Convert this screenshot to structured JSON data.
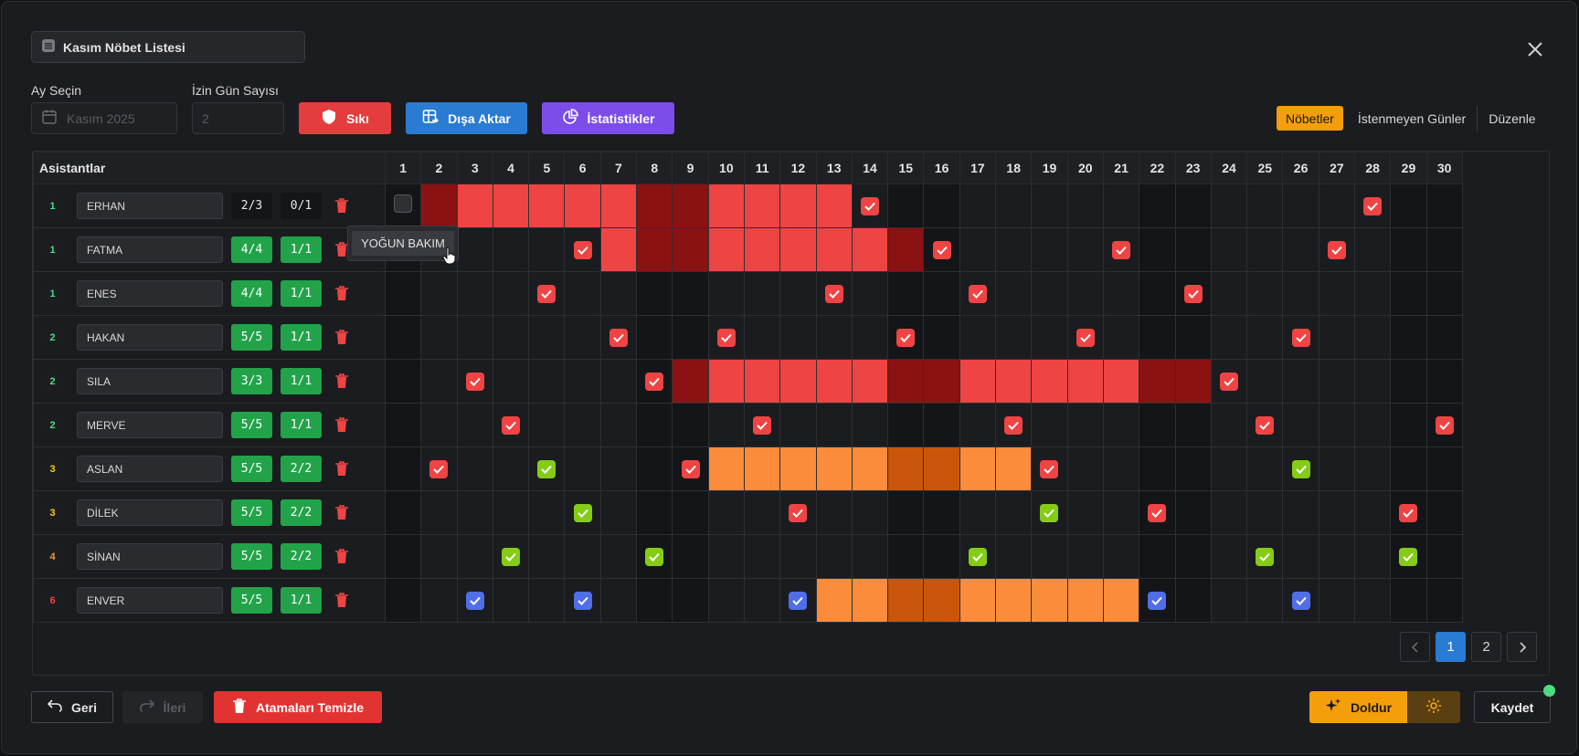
{
  "window": {
    "title": "Kasım Nöbet Listesi"
  },
  "controls": {
    "month_label": "Ay Seçin",
    "month_value": "Kasım 2025",
    "leave_label": "İzin Gün Sayısı",
    "leave_value": "2",
    "strict_button": "Sıkı",
    "export_button": "Dışa Aktar",
    "stats_button": "İstatistikler"
  },
  "tabs": {
    "shifts": "Nöbetler",
    "unwanted": "İstenmeyen Günler",
    "edit": "Düzenle"
  },
  "grid": {
    "header_name": "Asistantlar",
    "days": [
      "1",
      "2",
      "3",
      "4",
      "5",
      "6",
      "7",
      "8",
      "9",
      "10",
      "11",
      "12",
      "13",
      "14",
      "15",
      "16",
      "17",
      "18",
      "19",
      "20",
      "21",
      "22",
      "23",
      "24",
      "25",
      "26",
      "27",
      "28",
      "29",
      "30"
    ],
    "weekend_days": [
      1,
      8,
      9,
      15,
      16,
      22,
      23,
      29,
      30
    ],
    "rows": [
      {
        "level": "1",
        "name": "ERHAN",
        "a": "2/3",
        "b": "0/1",
        "a_style": "d",
        "b_style": "d"
      },
      {
        "level": "1",
        "name": "FATMA",
        "a": "4/4",
        "b": "1/1",
        "a_style": "g",
        "b_style": "g"
      },
      {
        "level": "1",
        "name": "ENES",
        "a": "4/4",
        "b": "1/1",
        "a_style": "g",
        "b_style": "g"
      },
      {
        "level": "2",
        "name": "HAKAN",
        "a": "5/5",
        "b": "1/1",
        "a_style": "g",
        "b_style": "g"
      },
      {
        "level": "2",
        "name": "SILA",
        "a": "3/3",
        "b": "1/1",
        "a_style": "g",
        "b_style": "g"
      },
      {
        "level": "2",
        "name": "MERVE",
        "a": "5/5",
        "b": "1/1",
        "a_style": "g",
        "b_style": "g"
      },
      {
        "level": "3",
        "name": "ASLAN",
        "a": "5/5",
        "b": "2/2",
        "a_style": "g",
        "b_style": "g"
      },
      {
        "level": "3",
        "name": "DİLEK",
        "a": "5/5",
        "b": "2/2",
        "a_style": "g",
        "b_style": "g"
      },
      {
        "level": "4",
        "name": "SİNAN",
        "a": "5/5",
        "b": "2/2",
        "a_style": "g",
        "b_style": "g"
      },
      {
        "level": "6",
        "name": "ENVER",
        "a": "5/5",
        "b": "1/1",
        "a_style": "g",
        "b_style": "g"
      }
    ],
    "level_colors": {
      "1": "#4ade80",
      "2": "#4ade80",
      "3": "#facc15",
      "4": "#fb923c",
      "6": "#ef4444"
    }
  },
  "tooltip": "YOĞUN BAKIM",
  "pagination": {
    "pages": [
      "1",
      "2"
    ],
    "current": "1"
  },
  "footer": {
    "back": "Geri",
    "forward": "İleri",
    "clear": "Atamaları Temizle",
    "fill": "Doldur",
    "save": "Kaydet"
  },
  "colors": {
    "red": "#ef4444",
    "dark_red": "#8b1212",
    "orange": "#fb8c3c",
    "dark_orange": "#c9560a",
    "green": "#22a34a",
    "blue": "#2a7bd2",
    "purple": "#7c4de8",
    "amber": "#f59e0b"
  }
}
